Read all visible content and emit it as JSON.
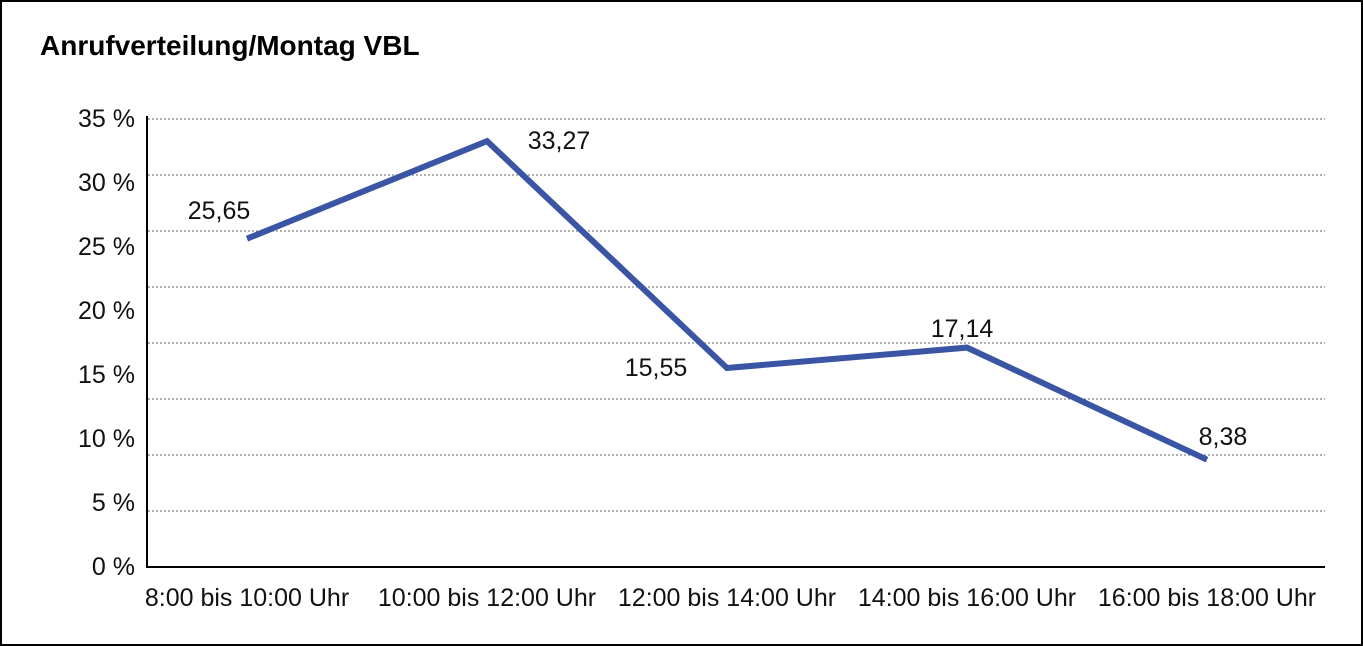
{
  "title": "Anrufverteilung/Montag VBL",
  "colors": {
    "line": "#3A55A4",
    "grid": "#808080",
    "axis": "#000000",
    "border": "#000000",
    "background": "#FFFFFF",
    "text": "#111111"
  },
  "chart_data": {
    "type": "line",
    "title": "Anrufverteilung/Montag VBL",
    "categories": [
      "8:00 bis 10:00 Uhr",
      "10:00 bis 12:00 Uhr",
      "12:00 bis 14:00 Uhr",
      "14:00 bis 16:00 Uhr",
      "16:00 bis 18:00 Uhr"
    ],
    "values": [
      25.65,
      33.27,
      15.55,
      17.14,
      8.38
    ],
    "point_labels": [
      "25,65",
      "33,27",
      "15,55",
      "17,14",
      "8,38"
    ],
    "y_ticks": [
      "35 %",
      "30 %",
      "25 %",
      "20 %",
      "15 %",
      "10 %",
      "5 %",
      "0 %"
    ],
    "y_tick_values": [
      35,
      30,
      25,
      20,
      15,
      10,
      5,
      0
    ],
    "ylim": [
      0,
      35
    ],
    "xlabel": "",
    "ylabel": "",
    "unit": "%",
    "legend": "none",
    "grid": "horizontal-dotted",
    "line_color": "#3A55A4"
  }
}
